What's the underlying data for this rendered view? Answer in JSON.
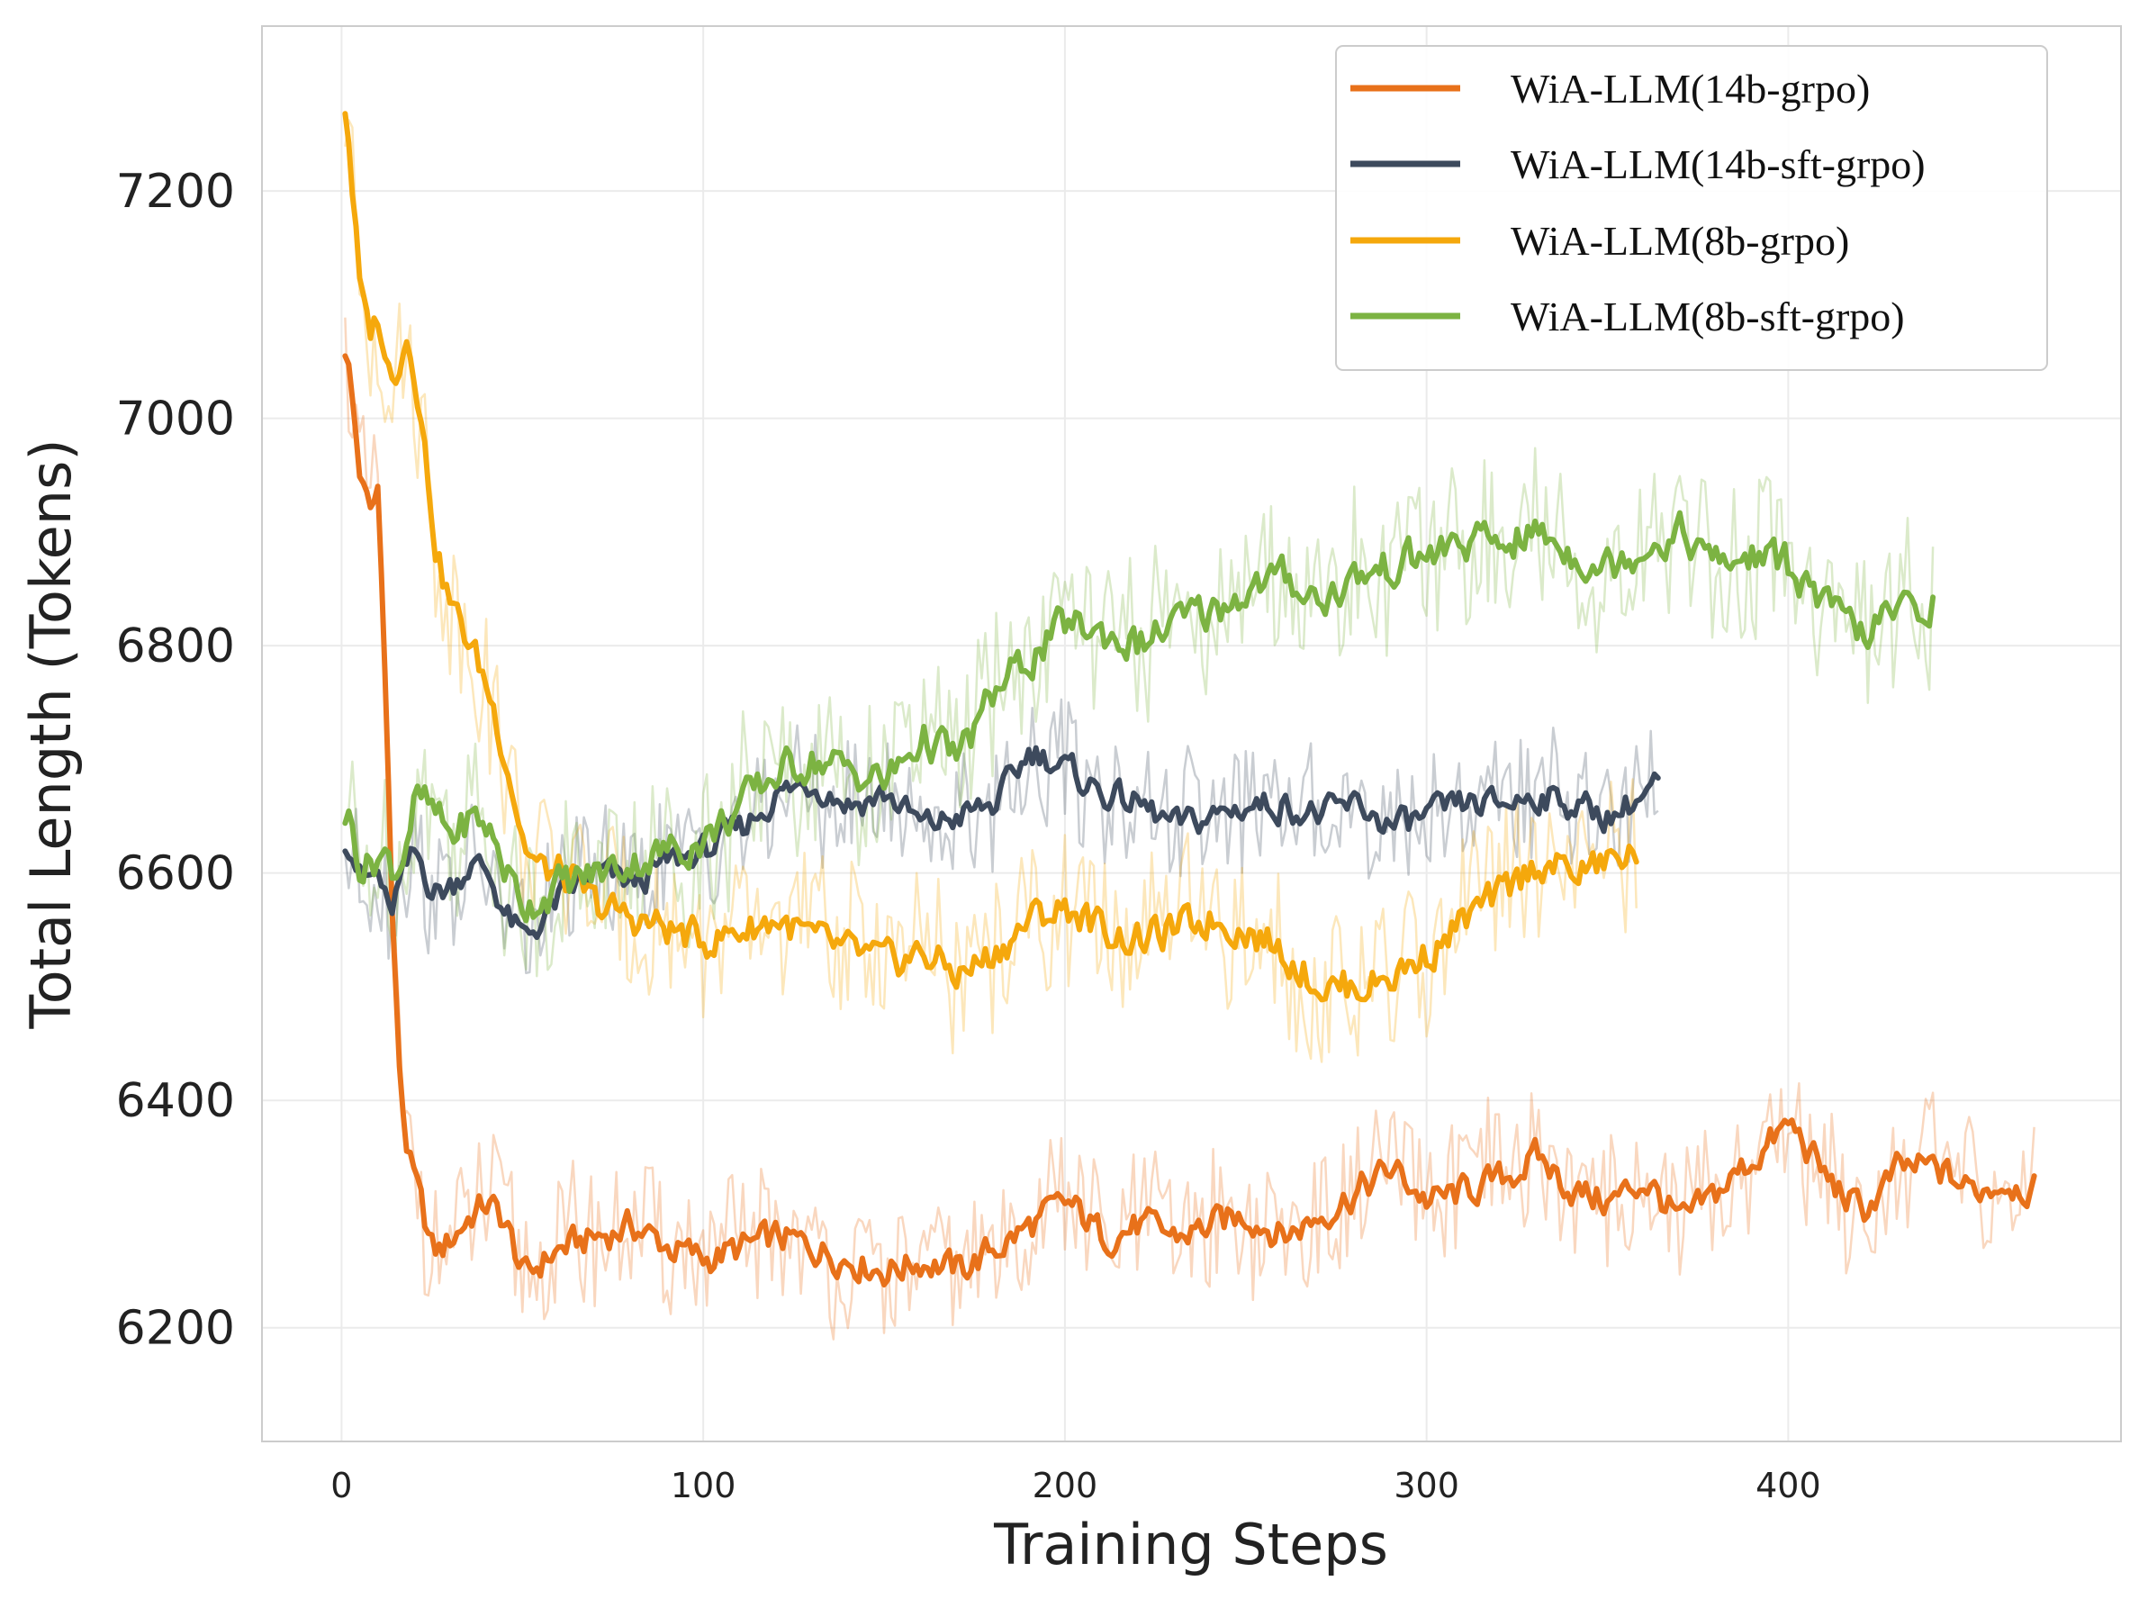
{
  "chart_data": {
    "type": "line",
    "title": "",
    "xlabel": "Training Steps",
    "ylabel": "Total Length (Tokens)",
    "xlim": [
      -22,
      492
    ],
    "ylim": [
      6100,
      7345
    ],
    "xticks": [
      0,
      100,
      200,
      300,
      400
    ],
    "yticks": [
      6200,
      6400,
      6600,
      6800,
      7000,
      7200
    ],
    "grid": true,
    "legend_position": "top-right",
    "series": [
      {
        "name": "WiA-LLM(14b-grpo)",
        "color": "#E8711A",
        "x": [
          1,
          3,
          5,
          8,
          10,
          12,
          14,
          16,
          18,
          20,
          25,
          30,
          35,
          40,
          45,
          50,
          55,
          60,
          70,
          80,
          90,
          100,
          110,
          120,
          130,
          140,
          150,
          160,
          170,
          180,
          190,
          200,
          210,
          220,
          230,
          240,
          250,
          260,
          270,
          280,
          290,
          300,
          310,
          320,
          330,
          340,
          350,
          360,
          370,
          380,
          390,
          400,
          410,
          420,
          430,
          440,
          450,
          460,
          468
        ],
        "y": [
          7070,
          6990,
          6930,
          6910,
          6950,
          6700,
          6480,
          6380,
          6340,
          6320,
          6260,
          6280,
          6300,
          6310,
          6290,
          6240,
          6260,
          6270,
          6280,
          6290,
          6270,
          6260,
          6270,
          6280,
          6270,
          6260,
          6250,
          6260,
          6250,
          6270,
          6290,
          6310,
          6280,
          6290,
          6280,
          6290,
          6300,
          6280,
          6300,
          6320,
          6340,
          6310,
          6320,
          6330,
          6350,
          6320,
          6310,
          6330,
          6290,
          6320,
          6350,
          6380,
          6330,
          6300,
          6340,
          6340,
          6320,
          6330,
          6320
        ]
      },
      {
        "name": "WiA-LLM(14b-sft-grpo)",
        "color": "#3D4A5D",
        "x": [
          1,
          5,
          10,
          13,
          15,
          20,
          25,
          30,
          35,
          40,
          45,
          50,
          55,
          60,
          70,
          80,
          90,
          100,
          110,
          120,
          130,
          140,
          150,
          160,
          170,
          180,
          190,
          200,
          210,
          220,
          230,
          240,
          250,
          260,
          270,
          280,
          290,
          300,
          310,
          320,
          330,
          340,
          350,
          355,
          360,
          364
        ],
        "y": [
          6640,
          6590,
          6600,
          6550,
          6590,
          6620,
          6580,
          6590,
          6610,
          6600,
          6560,
          6540,
          6560,
          6580,
          6600,
          6590,
          6610,
          6620,
          6640,
          6670,
          6680,
          6660,
          6670,
          6640,
          6650,
          6660,
          6710,
          6690,
          6670,
          6660,
          6640,
          6650,
          6660,
          6660,
          6650,
          6660,
          6640,
          6650,
          6660,
          6660,
          6670,
          6660,
          6650,
          6660,
          6670,
          6680
        ]
      },
      {
        "name": "WiA-LLM(8b-grpo)",
        "color": "#F5A80C",
        "x": [
          1,
          3,
          5,
          8,
          10,
          12,
          15,
          18,
          20,
          23,
          26,
          30,
          35,
          40,
          45,
          50,
          55,
          60,
          70,
          80,
          90,
          100,
          110,
          120,
          130,
          140,
          150,
          160,
          170,
          180,
          190,
          200,
          210,
          220,
          230,
          240,
          250,
          260,
          270,
          280,
          290,
          300,
          310,
          320,
          330,
          340,
          350,
          358
        ],
        "y": [
          7280,
          7170,
          7080,
          7070,
          7100,
          7030,
          7050,
          7080,
          7040,
          6950,
          6870,
          6830,
          6800,
          6760,
          6700,
          6620,
          6600,
          6600,
          6570,
          6560,
          6550,
          6540,
          6550,
          6560,
          6540,
          6530,
          6520,
          6530,
          6510,
          6530,
          6560,
          6570,
          6550,
          6540,
          6550,
          6560,
          6550,
          6530,
          6500,
          6500,
          6510,
          6530,
          6560,
          6580,
          6610,
          6600,
          6610,
          6620
        ]
      },
      {
        "name": "WiA-LLM(8b-sft-grpo)",
        "color": "#7CB342",
        "x": [
          1,
          5,
          10,
          15,
          20,
          25,
          30,
          35,
          40,
          45,
          50,
          55,
          60,
          70,
          80,
          90,
          100,
          110,
          120,
          130,
          140,
          150,
          160,
          170,
          180,
          190,
          200,
          210,
          220,
          230,
          240,
          250,
          260,
          270,
          280,
          290,
          300,
          310,
          320,
          330,
          340,
          350,
          360,
          370,
          380,
          390,
          400,
          410,
          420,
          430,
          440
        ],
        "y": [
          6660,
          6600,
          6620,
          6600,
          6670,
          6650,
          6630,
          6650,
          6640,
          6600,
          6570,
          6580,
          6590,
          6600,
          6610,
          6620,
          6630,
          6660,
          6690,
          6700,
          6690,
          6680,
          6720,
          6700,
          6760,
          6790,
          6820,
          6810,
          6800,
          6820,
          6830,
          6850,
          6860,
          6840,
          6860,
          6870,
          6880,
          6890,
          6890,
          6900,
          6880,
          6870,
          6890,
          6900,
          6870,
          6880,
          6870,
          6830,
          6810,
          6830,
          6840
        ]
      }
    ]
  }
}
